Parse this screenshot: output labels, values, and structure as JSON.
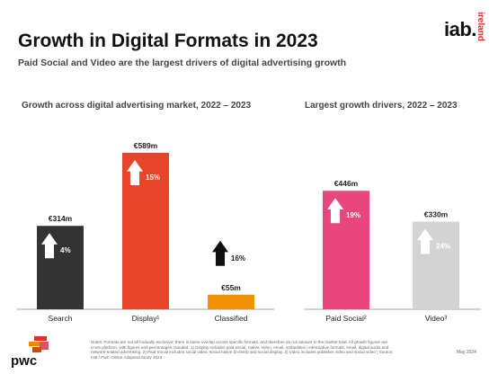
{
  "page": {
    "title": "Growth in Digital Formats in 2023",
    "subtitle": "Paid Social and Video are the largest drivers of digital advertising growth",
    "logo_iab": "iab.",
    "logo_country": "ireland",
    "logo_pwc": "pwc",
    "notes": "Notes: Formats are not all mutually exclusive; there is some overlap across specific formats, and therefore do not amount to the market total. All growth figures are cross platform, with figures and percentages rounded. 1) Display includes paid social, native, video, email, embedded / interruptive formats, email, digital audio and network-related advertising. 2) Paid Social includes social video, social native (in-feed) and social display. 3) Video includes publisher video and social video | Source: IAB / PwC Online Adspend Study 2023",
    "date": "May 2024"
  },
  "colors": {
    "search": "#333333",
    "display": "#e8442a",
    "classified": "#f39200",
    "paid_social": "#e8467c",
    "video": "#d3d3d3",
    "arrow_dark": "#111111",
    "logo_accent": "#e22a2a"
  },
  "chart_data": [
    {
      "type": "bar",
      "title": "Growth across digital advertising market, 2022 – 2023",
      "categories": [
        "Search",
        "Display¹",
        "Classified"
      ],
      "values": [
        314,
        589,
        55
      ],
      "value_labels": [
        "€314m",
        "€589m",
        "€55m"
      ],
      "growth_labels": [
        "4%",
        "15%",
        "16%"
      ],
      "growth_direction": [
        "up",
        "up",
        "up"
      ],
      "ylim": [
        0,
        589
      ]
    },
    {
      "type": "bar",
      "title": "Largest growth drivers, 2022 – 2023",
      "categories": [
        "Paid Social²",
        "Video³"
      ],
      "values": [
        446,
        330
      ],
      "value_labels": [
        "€446m",
        "€330m"
      ],
      "growth_labels": [
        "19%",
        "24%"
      ],
      "growth_direction": [
        "up",
        "up"
      ],
      "ylim": [
        0,
        589
      ]
    }
  ]
}
